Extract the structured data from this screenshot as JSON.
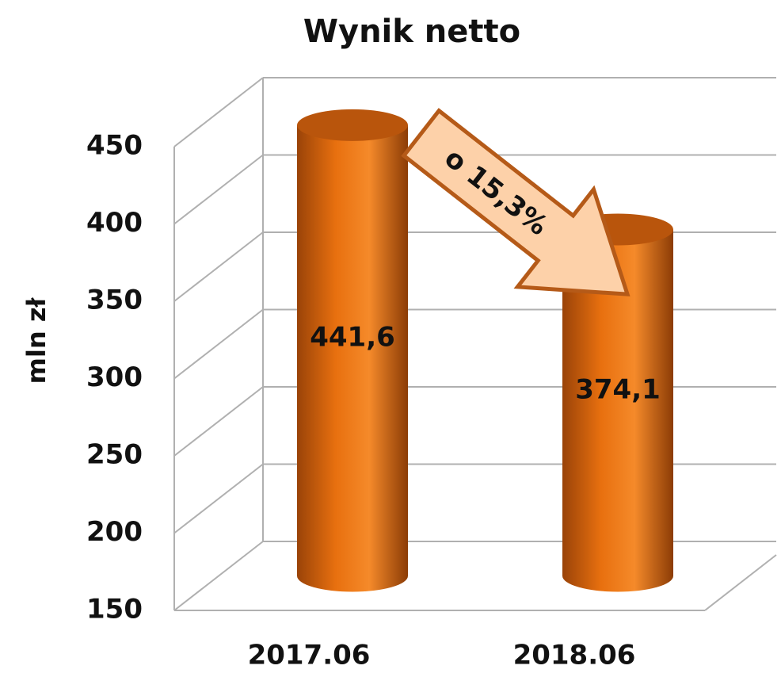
{
  "chart_data": {
    "type": "bar",
    "title": "Wynik netto",
    "y_label": "mln zł",
    "categories": [
      "2017.06",
      "2018.06"
    ],
    "values": [
      441.6,
      374.1
    ],
    "value_labels": [
      "441,6",
      "374,1"
    ],
    "color": "#e8700f",
    "annotation": "o 15,3%",
    "ylim": [
      150,
      450
    ],
    "yticks": [
      150,
      200,
      250,
      300,
      350,
      400,
      450
    ],
    "grid": true
  }
}
